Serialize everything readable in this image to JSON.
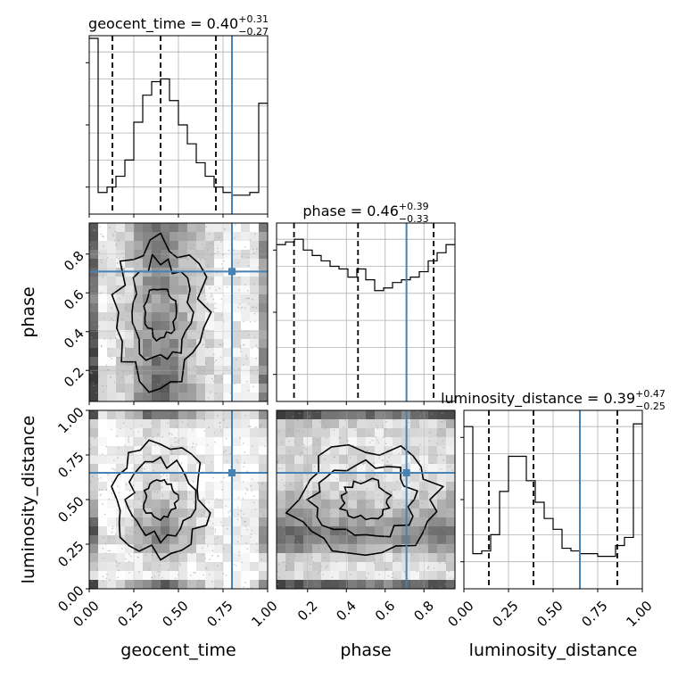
{
  "chart_data": {
    "type": "corner",
    "parameters": [
      "geocent_time",
      "phase",
      "luminosity_distance"
    ],
    "axis_labels": {
      "geocent_time": "geocent_time",
      "phase": "phase",
      "luminosity_distance": "luminosity_distance"
    },
    "axis_ranges": {
      "geocent_time": [
        0.0,
        1.0
      ],
      "phase": [
        0.04,
        0.96
      ],
      "luminosity_distance": [
        0.0,
        1.0
      ]
    },
    "ticks": {
      "geocent_time": [
        0.0,
        0.25,
        0.5,
        0.75,
        1.0
      ],
      "phase": [
        0.2,
        0.4,
        0.6,
        0.8
      ],
      "luminosity_distance": [
        0.0,
        0.25,
        0.5,
        0.75,
        1.0
      ]
    },
    "tick_labels": {
      "geocent_time": [
        "0.00",
        "0.25",
        "0.50",
        "0.75",
        "1.00"
      ],
      "phase": [
        "0.2",
        "0.4",
        "0.6",
        "0.8"
      ],
      "luminosity_distance": [
        "0.00",
        "0.25",
        "0.50",
        "0.75",
        "1.00"
      ]
    },
    "titles": {
      "geocent_time": {
        "label": "geocent_time = 0.40",
        "plus": "+0.31",
        "minus": "−0.27"
      },
      "phase": {
        "label": "phase = 0.46",
        "plus": "+0.39",
        "minus": "−0.33"
      },
      "luminosity_distance": {
        "label": "luminosity_distance = 0.39",
        "plus": "+0.47",
        "minus": "−0.25"
      }
    },
    "truths": {
      "geocent_time": 0.8,
      "phase": 0.71,
      "luminosity_distance": 0.65
    },
    "quantiles": {
      "geocent_time": [
        0.13,
        0.4,
        0.71
      ],
      "phase": [
        0.13,
        0.46,
        0.85
      ],
      "luminosity_distance": [
        0.14,
        0.39,
        0.86
      ]
    },
    "histograms": {
      "geocent_time": {
        "range": [
          0.0,
          1.0
        ],
        "counts": [
          6.5,
          0.8,
          1.0,
          1.4,
          2.0,
          3.4,
          4.4,
          4.9,
          5.0,
          4.2,
          3.3,
          2.6,
          1.9,
          1.4,
          1.0,
          0.8,
          0.7,
          0.7,
          0.8,
          4.1
        ]
      },
      "phase": {
        "range": [
          0.04,
          0.96
        ],
        "counts": [
          5.8,
          5.9,
          6.0,
          5.6,
          5.4,
          5.2,
          5.0,
          4.9,
          4.6,
          4.9,
          4.5,
          4.1,
          4.2,
          4.4,
          4.5,
          4.6,
          4.8,
          5.2,
          5.5,
          5.8
        ]
      },
      "luminosity_distance": {
        "range": [
          0.0,
          1.0
        ],
        "counts": [
          6.0,
          1.3,
          1.4,
          2.0,
          3.6,
          4.9,
          4.9,
          4.0,
          3.2,
          2.6,
          2.2,
          1.5,
          1.4,
          1.3,
          1.3,
          1.2,
          1.2,
          1.6,
          1.9,
          6.1
        ]
      }
    },
    "colors": {
      "truth": "#4682b4",
      "lines": "#000000",
      "grid": "#b0b0b0"
    },
    "grid": true
  }
}
